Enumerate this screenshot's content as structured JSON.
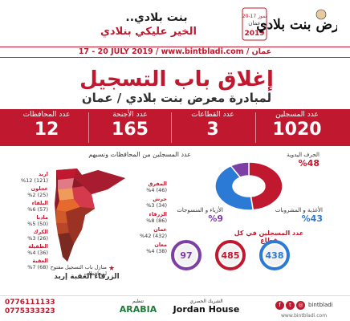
{
  "header": {
    "logo_text": "معرض بنت بلادي",
    "logo_dates": "20-17 تموز",
    "logo_city": "عمان",
    "logo_year": "2019",
    "slogan_line1": "بنت بلادي..",
    "slogan_line2": "الخير عليكي بنلادي"
  },
  "date_bar": "17 - 20 JULY 2019 / www.bintbladi.com / عمان",
  "title": "إغلاق باب التسجيل",
  "subtitle": "لمبادرة معرض بنت بلادي / عمان",
  "stats": [
    {
      "label": "عدد المسجلين",
      "value": "1020"
    },
    {
      "label": "عدد القطاعات",
      "value": "3"
    },
    {
      "label": "عدد الأجنحة",
      "value": "165"
    },
    {
      "label": "عدد المحافظات",
      "value": "12"
    }
  ],
  "map": {
    "title": "عدد المسجلين من المحافظات ونسبهم",
    "governorates_left": [
      {
        "name": "اربد",
        "stat": "(121) %12"
      },
      {
        "name": "عجلون",
        "stat": "(25) %2"
      },
      {
        "name": "البلقاء",
        "stat": "(57) %6"
      },
      {
        "name": "مادبا",
        "stat": "(50) %5"
      },
      {
        "name": "الكرك",
        "stat": "(26) %3"
      },
      {
        "name": "الطفيلة",
        "stat": "(36) %4"
      },
      {
        "name": "العقبة",
        "stat": "(68) %7"
      }
    ],
    "governorates_right": [
      {
        "name": "المفرق",
        "stat": "(46) %4"
      },
      {
        "name": "جرش",
        "stat": "(34) %3"
      },
      {
        "name": "الزرقاء",
        "stat": "(86) %8"
      },
      {
        "name": "عمان",
        "stat": "(432) %42"
      },
      {
        "name": "معان",
        "stat": "(38) %4"
      }
    ],
    "legend": "منازل باب التسجيل مفتوح لمحافظات",
    "cities": "الزرقاء  العقبة  إربد"
  },
  "chart_data": {
    "type": "pie",
    "title": "",
    "categories": [
      "الحرف اليدوية",
      "الأغذية و المشروبات",
      "الأزياء و المنسوجات"
    ],
    "values": [
      48,
      43,
      9
    ],
    "colors": [
      "#c0182e",
      "#2b7bd6",
      "#7b3fa6"
    ]
  },
  "sectors": {
    "title": "عدد المسجلين في كل قطاع",
    "circles": [
      {
        "value": "97",
        "color": "#7b3fa6"
      },
      {
        "value": "485",
        "color": "#c0182e"
      },
      {
        "value": "438",
        "color": "#2b7bd6"
      }
    ]
  },
  "footer": {
    "phone1": "0776111133",
    "phone2": "0775333323",
    "sponsor1_label": "تنظيم",
    "sponsor1": "ARABIA",
    "sponsor2_label": "الشريك الحصري",
    "sponsor2": "Jordan House",
    "social_handle": "bintbladi",
    "web": "www.bintbladi.com"
  }
}
